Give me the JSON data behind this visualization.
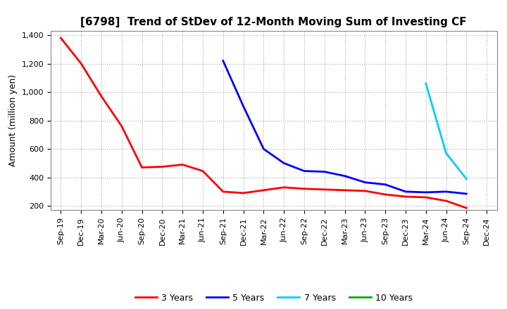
{
  "title": "[6798]  Trend of StDev of 12-Month Moving Sum of Investing CF",
  "ylabel": "Amount (million yen)",
  "background_color": "#ffffff",
  "grid_color": "#aaaaaa",
  "title_fontsize": 11,
  "axis_fontsize": 9,
  "tick_fontsize": 8,
  "ylim": [
    170,
    1430
  ],
  "yticks": [
    200,
    400,
    600,
    800,
    1000,
    1200,
    1400
  ],
  "series": {
    "3yr": {
      "label": "3 Years",
      "color": "#ff0000",
      "x": [
        "Sep-19",
        "Dec-19",
        "Mar-20",
        "Jun-20",
        "Sep-20",
        "Dec-20",
        "Mar-21",
        "Jun-21",
        "Sep-21",
        "Dec-21",
        "Mar-22",
        "Jun-22",
        "Sep-22",
        "Dec-22",
        "Mar-23",
        "Jun-23",
        "Sep-23",
        "Dec-23",
        "Mar-24",
        "Jun-24",
        "Sep-24"
      ],
      "y": [
        1380,
        1200,
        970,
        760,
        470,
        475,
        490,
        445,
        300,
        290,
        310,
        330,
        320,
        315,
        310,
        305,
        280,
        265,
        260,
        235,
        185
      ]
    },
    "5yr": {
      "label": "5 Years",
      "color": "#0000ff",
      "x": [
        "Sep-21",
        "Dec-21",
        "Mar-22",
        "Jun-22",
        "Sep-22",
        "Dec-22",
        "Mar-23",
        "Jun-23",
        "Sep-23",
        "Dec-23",
        "Mar-24",
        "Jun-24",
        "Sep-24"
      ],
      "y": [
        1220,
        900,
        600,
        500,
        445,
        440,
        410,
        365,
        350,
        300,
        295,
        300,
        285
      ]
    },
    "7yr": {
      "label": "7 Years",
      "color": "#00ccff",
      "x": [
        "Mar-24",
        "Jun-24",
        "Sep-24"
      ],
      "y": [
        1060,
        570,
        390
      ]
    },
    "10yr": {
      "label": "10 Years",
      "color": "#00aa00",
      "x": [
        "Sep-24"
      ],
      "y": [
        285
      ]
    }
  },
  "xtick_labels": [
    "Sep-19",
    "Dec-19",
    "Mar-20",
    "Jun-20",
    "Sep-20",
    "Dec-20",
    "Mar-21",
    "Jun-21",
    "Sep-21",
    "Dec-21",
    "Mar-22",
    "Jun-22",
    "Sep-22",
    "Dec-22",
    "Mar-23",
    "Jun-23",
    "Sep-23",
    "Dec-23",
    "Mar-24",
    "Jun-24",
    "Sep-24",
    "Dec-24"
  ]
}
